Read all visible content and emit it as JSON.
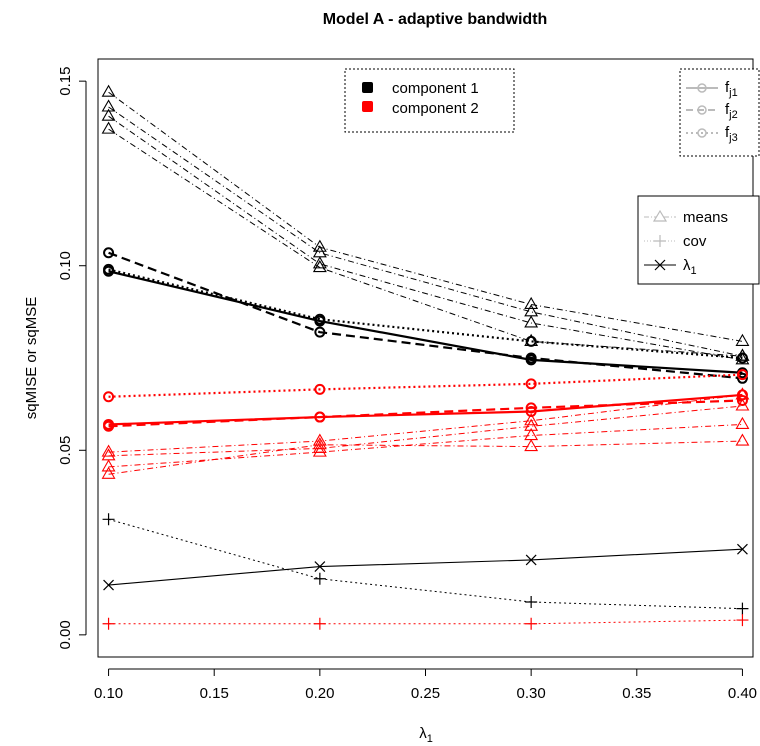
{
  "chart_data": {
    "type": "line",
    "title": "Model A - adaptive bandwidth",
    "xlabel": "λ",
    "xlabel_sub": "1",
    "ylabel": "sqMISE or sqMSE",
    "x": [
      0.1,
      0.2,
      0.3,
      0.4
    ],
    "xlim": [
      0.095,
      0.405
    ],
    "ylim": [
      -0.006,
      0.156
    ],
    "x_ticks": [
      "0.10",
      "0.15",
      "0.20",
      "0.25",
      "0.30",
      "0.35",
      "0.40"
    ],
    "y_ticks": [
      "0.00",
      "0.05",
      "0.10",
      "0.15"
    ],
    "colors": {
      "component1": "#000000",
      "component2": "#ff0000",
      "legend_grey": "#bbbbbb"
    },
    "legend_components": {
      "position": "top-center",
      "entries": [
        {
          "label": "component 1",
          "color": "#000000"
        },
        {
          "label": "component 2",
          "color": "#ff0000"
        }
      ]
    },
    "legend_functions": {
      "position": "top-right",
      "entries": [
        {
          "label": "f",
          "sub": "j1",
          "dash": "solid"
        },
        {
          "label": "f",
          "sub": "j2",
          "dash": "dashed"
        },
        {
          "label": "f",
          "sub": "j3",
          "dash": "dotted"
        }
      ]
    },
    "legend_types": {
      "position": "right",
      "entries": [
        {
          "label": "means",
          "marker": "triangle",
          "dash": "dotdash"
        },
        {
          "label": "cov",
          "marker": "plus",
          "dash": "dotted"
        },
        {
          "label": "λ",
          "sub": "1",
          "marker": "cross",
          "dash": "solid"
        }
      ]
    },
    "series": [
      {
        "component": "1",
        "kind": "density",
        "fn": "j1",
        "marker": "circle",
        "dash": "solid",
        "values": [
          0.0985,
          0.085,
          0.0745,
          0.071
        ]
      },
      {
        "component": "1",
        "kind": "density",
        "fn": "j2",
        "marker": "circle",
        "dash": "dashed",
        "values": [
          0.1035,
          0.082,
          0.075,
          0.0695
        ]
      },
      {
        "component": "1",
        "kind": "density",
        "fn": "j3",
        "marker": "circle",
        "dash": "dotted",
        "values": [
          0.099,
          0.0855,
          0.0795,
          0.075
        ]
      },
      {
        "component": "2",
        "kind": "density",
        "fn": "j1",
        "marker": "circle",
        "dash": "solid",
        "values": [
          0.057,
          0.059,
          0.0605,
          0.065
        ]
      },
      {
        "component": "2",
        "kind": "density",
        "fn": "j2",
        "marker": "circle",
        "dash": "dashed",
        "values": [
          0.0565,
          0.059,
          0.0615,
          0.0635
        ]
      },
      {
        "component": "2",
        "kind": "density",
        "fn": "j3",
        "marker": "circle",
        "dash": "dotted",
        "values": [
          0.0645,
          0.0665,
          0.068,
          0.0705
        ]
      },
      {
        "component": "1",
        "kind": "means",
        "marker": "triangle",
        "dash": "dotdash",
        "values": [
          0.147,
          0.105,
          0.0895,
          0.0795
        ]
      },
      {
        "component": "1",
        "kind": "means",
        "marker": "triangle",
        "dash": "dotdash",
        "values": [
          0.143,
          0.1035,
          0.0875,
          0.0755
        ]
      },
      {
        "component": "1",
        "kind": "means",
        "marker": "triangle",
        "dash": "dotdash",
        "values": [
          0.1405,
          0.1005,
          0.0845,
          0.0745
        ]
      },
      {
        "component": "1",
        "kind": "means",
        "marker": "triangle",
        "dash": "dotdash",
        "values": [
          0.137,
          0.0995,
          0.0795,
          0.0755
        ]
      },
      {
        "component": "2",
        "kind": "means",
        "marker": "triangle",
        "dash": "dotdash",
        "values": [
          0.0495,
          0.0525,
          0.058,
          0.065
        ]
      },
      {
        "component": "2",
        "kind": "means",
        "marker": "triangle",
        "dash": "dotdash",
        "values": [
          0.0485,
          0.0505,
          0.0565,
          0.062
        ]
      },
      {
        "component": "2",
        "kind": "means",
        "marker": "triangle",
        "dash": "dotdash",
        "values": [
          0.0455,
          0.0495,
          0.054,
          0.057
        ]
      },
      {
        "component": "2",
        "kind": "means",
        "marker": "triangle",
        "dash": "dotdash",
        "values": [
          0.0435,
          0.0515,
          0.051,
          0.0525
        ]
      },
      {
        "component": "1",
        "kind": "cov",
        "marker": "plus",
        "dash": "dotted",
        "values": [
          0.0313,
          0.0152,
          0.0089,
          0.0071
        ]
      },
      {
        "component": "2",
        "kind": "cov",
        "marker": "plus",
        "dash": "dotted",
        "values": [
          0.003,
          0.003,
          0.003,
          0.004
        ]
      },
      {
        "component": "1",
        "kind": "lambda",
        "marker": "cross",
        "dash": "solid",
        "values": [
          0.0135,
          0.0185,
          0.0203,
          0.0232
        ]
      }
    ]
  }
}
